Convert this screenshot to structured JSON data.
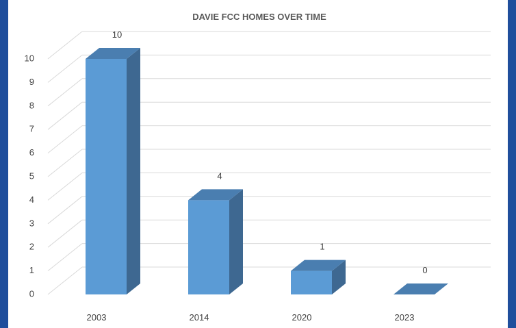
{
  "chart_data": {
    "type": "bar",
    "title": "DAVIE FCC HOMES OVER TIME",
    "categories": [
      "2003",
      "2014",
      "2020",
      "2023"
    ],
    "values": [
      10,
      4,
      1,
      0
    ],
    "data_labels": [
      "10",
      "4",
      "1",
      "0"
    ],
    "xlabel": "",
    "ylabel": "",
    "ylim": [
      0,
      10
    ],
    "yticks": [
      0,
      1,
      2,
      3,
      4,
      5,
      6,
      7,
      8,
      9,
      10
    ],
    "grid": true,
    "legend": "none",
    "style": "3d-column",
    "colors": {
      "front": "#5b9bd5",
      "side": "#3e6891",
      "top": "#4a7eb0",
      "grid": "#d9d9d9",
      "background": "#1f4e9c"
    }
  }
}
